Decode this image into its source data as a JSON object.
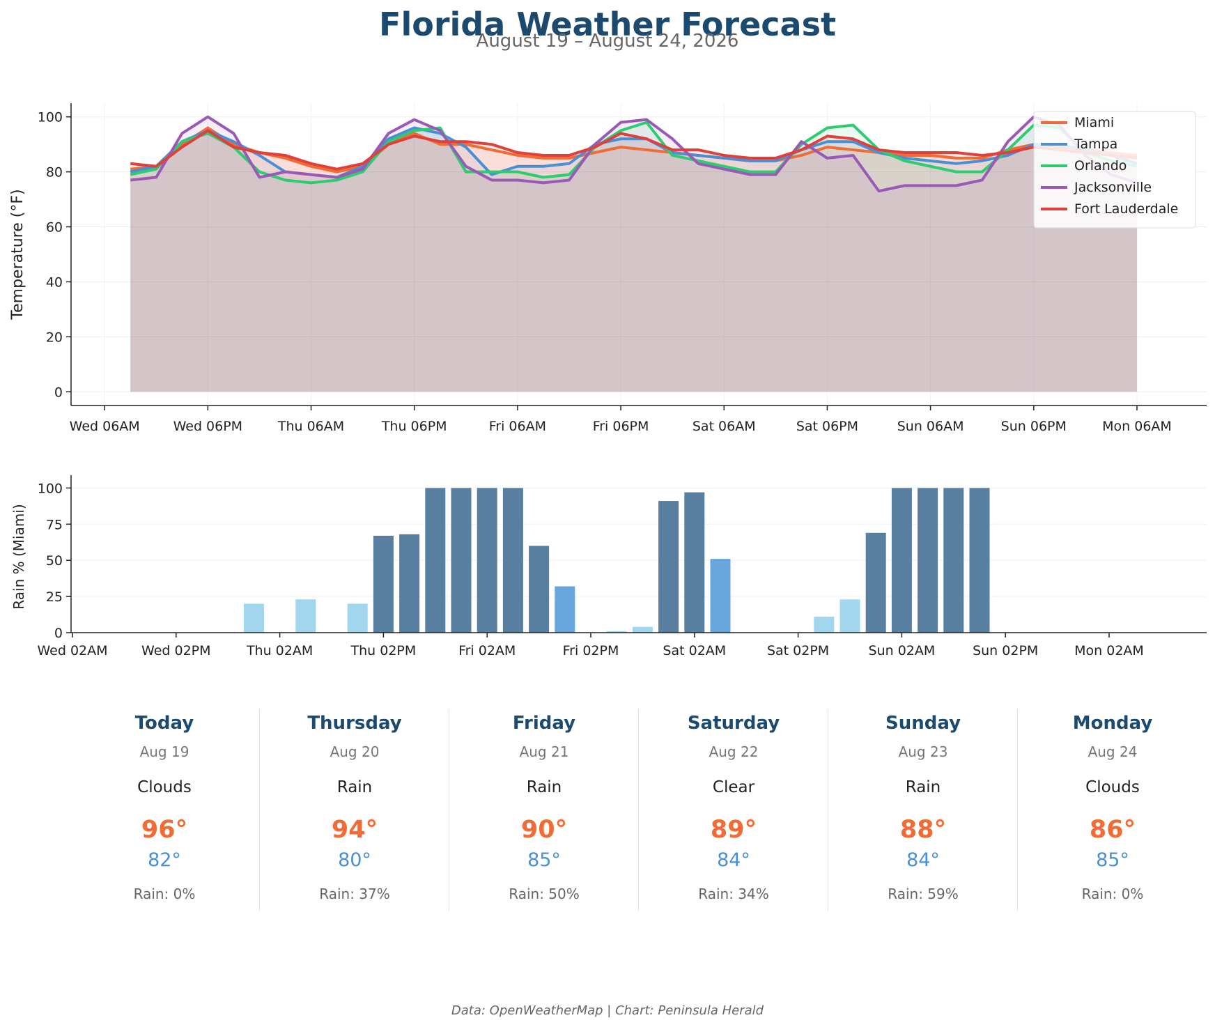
{
  "title": "Florida Weather Forecast",
  "subtitle": "August 19 – August 24, 2026",
  "credit": "Data: OpenWeatherMap | Chart: Peninsula Herald",
  "colors": {
    "Miami": "#f26b35",
    "Tampa": "#4a8fd6",
    "Orlando": "#2ecc71",
    "Jacksonville": "#9b59b6",
    "Fort Lauderdale": "#e0403a",
    "rain_high": "#587f9f",
    "rain_mid": "#6aa6de",
    "rain_low": "#a2d6ee"
  },
  "chart_data": [
    {
      "type": "line",
      "x": [
        "Wed 09AM",
        "Wed 12PM",
        "Wed 03PM",
        "Wed 06PM",
        "Wed 09PM",
        "Thu 12AM",
        "Thu 03AM",
        "Thu 06AM",
        "Thu 09AM",
        "Thu 12PM",
        "Thu 03PM",
        "Thu 06PM",
        "Thu 09PM",
        "Fri 12AM",
        "Fri 03AM",
        "Fri 06AM",
        "Fri 09AM",
        "Fri 12PM",
        "Fri 03PM",
        "Fri 06PM",
        "Fri 09PM",
        "Sat 12AM",
        "Sat 03AM",
        "Sat 06AM",
        "Sat 09AM",
        "Sat 12PM",
        "Sat 03PM",
        "Sat 06PM",
        "Sat 09PM",
        "Sun 12AM",
        "Sun 03AM",
        "Sun 06AM",
        "Sun 09AM",
        "Sun 12PM",
        "Sun 03PM",
        "Sun 06PM",
        "Sun 09PM",
        "Mon 12AM",
        "Mon 03AM",
        "Mon 06AM"
      ],
      "xticks": [
        "Wed 06AM",
        "Wed 06PM",
        "Thu 06AM",
        "Thu 06PM",
        "Fri 06AM",
        "Fri 06PM",
        "Sat 06AM",
        "Sat 06PM",
        "Sun 06AM",
        "Sun 06PM",
        "Mon 06AM"
      ],
      "ylabel": "Temperature (°F)",
      "ylim": [
        -5,
        105
      ],
      "yticks": [
        0,
        20,
        40,
        60,
        80,
        100
      ],
      "grid": true,
      "legend": "top-right",
      "series": [
        {
          "name": "Miami",
          "values": [
            81,
            82,
            90,
            96,
            90,
            87,
            85,
            82,
            80,
            82,
            90,
            94,
            90,
            90,
            88,
            86,
            85,
            85,
            87,
            89,
            88,
            87,
            86,
            85,
            84,
            84,
            86,
            89,
            88,
            87,
            86,
            86,
            85,
            85,
            88,
            90,
            89,
            88,
            87,
            86
          ]
        },
        {
          "name": "Tampa",
          "values": [
            80,
            82,
            91,
            95,
            91,
            86,
            80,
            79,
            78,
            82,
            92,
            96,
            94,
            89,
            79,
            82,
            82,
            83,
            90,
            92,
            92,
            87,
            86,
            85,
            84,
            84,
            88,
            91,
            91,
            87,
            85,
            84,
            83,
            84,
            86,
            90,
            90,
            88,
            86,
            83
          ]
        },
        {
          "name": "Orlando",
          "values": [
            79,
            81,
            91,
            94,
            89,
            80,
            77,
            76,
            77,
            80,
            91,
            95,
            96,
            80,
            80,
            80,
            78,
            79,
            89,
            95,
            98,
            86,
            84,
            82,
            80,
            80,
            90,
            96,
            97,
            88,
            84,
            82,
            80,
            80,
            88,
            97,
            96,
            87,
            84,
            82
          ]
        },
        {
          "name": "Jacksonville",
          "values": [
            77,
            78,
            94,
            100,
            94,
            78,
            80,
            79,
            78,
            81,
            94,
            99,
            95,
            82,
            77,
            77,
            76,
            77,
            90,
            98,
            99,
            92,
            83,
            81,
            79,
            79,
            91,
            85,
            86,
            73,
            75,
            75,
            75,
            77,
            91,
            100,
            97,
            86,
            79,
            76
          ]
        },
        {
          "name": "Fort Lauderdale",
          "values": [
            83,
            82,
            89,
            95,
            89,
            87,
            86,
            83,
            81,
            83,
            90,
            93,
            91,
            91,
            90,
            87,
            86,
            86,
            89,
            94,
            92,
            88,
            88,
            86,
            85,
            85,
            88,
            93,
            92,
            88,
            87,
            87,
            87,
            86,
            87,
            89,
            88,
            87,
            86,
            85
          ]
        }
      ]
    },
    {
      "type": "bar",
      "x": [
        "Wed 02AM",
        "Wed 06AM",
        "Wed 10AM",
        "Wed 02PM",
        "Wed 06PM",
        "Wed 10PM",
        "Thu 02AM",
        "Thu 06AM",
        "Thu 10AM",
        "Thu 02PM",
        "Thu 06PM",
        "Thu 10PM",
        "Fri 02AM",
        "Fri 06AM",
        "Fri 10AM",
        "Fri 02PM",
        "Fri 06PM",
        "Fri 10PM",
        "Sat 02AM",
        "Sat 06AM",
        "Sat 10AM",
        "Sat 02PM",
        "Sat 06PM",
        "Sat 10PM",
        "Sun 02AM",
        "Sun 06AM",
        "Sun 10AM",
        "Sun 02PM",
        "Sun 06PM",
        "Sun 10PM",
        "Mon 02AM",
        "Mon 06AM"
      ],
      "xticks": [
        "Wed 02AM",
        "Wed 02PM",
        "Thu 02AM",
        "Thu 02PM",
        "Fri 02AM",
        "Fri 02PM",
        "Sat 02AM",
        "Sat 02PM",
        "Sun 02AM",
        "Sun 02PM",
        "Mon 02AM"
      ],
      "bars": [
        {
          "x": 7.0,
          "value": 20
        },
        {
          "x": 9.0,
          "value": 23
        },
        {
          "x": 11.0,
          "value": 20
        },
        {
          "x": 12.0,
          "value": 67
        },
        {
          "x": 13.0,
          "value": 68
        },
        {
          "x": 14.0,
          "value": 100
        },
        {
          "x": 15.0,
          "value": 100
        },
        {
          "x": 16.0,
          "value": 100
        },
        {
          "x": 17.0,
          "value": 100
        },
        {
          "x": 18.0,
          "value": 60
        },
        {
          "x": 19.0,
          "value": 32
        },
        {
          "x": 21.0,
          "value": 1
        },
        {
          "x": 22.0,
          "value": 4
        },
        {
          "x": 23.0,
          "value": 91
        },
        {
          "x": 24.0,
          "value": 97
        },
        {
          "x": 25.0,
          "value": 51
        },
        {
          "x": 29.0,
          "value": 11
        },
        {
          "x": 30.0,
          "value": 23
        },
        {
          "x": 31.0,
          "value": 69
        },
        {
          "x": 32.0,
          "value": 100
        },
        {
          "x": 33.0,
          "value": 100
        },
        {
          "x": 34.0,
          "value": 100
        },
        {
          "x": 35.0,
          "value": 100
        }
      ],
      "ylabel": "Rain % (Miami)",
      "ylim": [
        0,
        105
      ],
      "yticks": [
        0,
        25,
        50,
        75,
        100
      ],
      "grid": true
    }
  ],
  "daily": [
    {
      "day": "Today",
      "date": "Aug 19",
      "condition": "Clouds",
      "high": "96°",
      "low": "82°",
      "rain": "Rain: 0%"
    },
    {
      "day": "Thursday",
      "date": "Aug 20",
      "condition": "Rain",
      "high": "94°",
      "low": "80°",
      "rain": "Rain: 37%"
    },
    {
      "day": "Friday",
      "date": "Aug 21",
      "condition": "Rain",
      "high": "90°",
      "low": "85°",
      "rain": "Rain: 50%"
    },
    {
      "day": "Saturday",
      "date": "Aug 22",
      "condition": "Clear",
      "high": "89°",
      "low": "84°",
      "rain": "Rain: 34%"
    },
    {
      "day": "Sunday",
      "date": "Aug 23",
      "condition": "Rain",
      "high": "88°",
      "low": "84°",
      "rain": "Rain: 59%"
    },
    {
      "day": "Monday",
      "date": "Aug 24",
      "condition": "Clouds",
      "high": "86°",
      "low": "85°",
      "rain": "Rain: 0%"
    }
  ]
}
